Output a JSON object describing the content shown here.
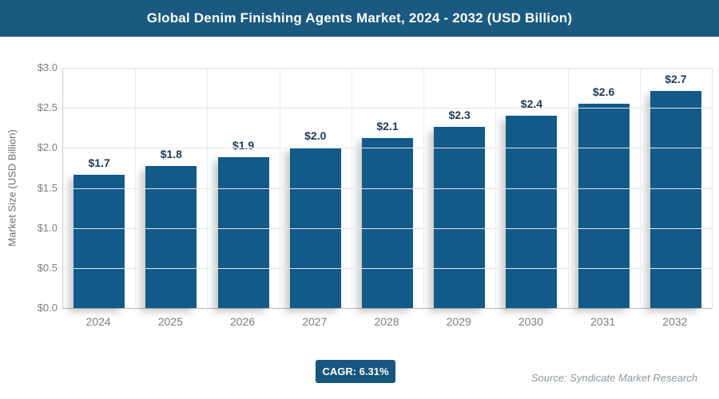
{
  "header": {
    "title": "Global Denim Finishing Agents Market, 2024 - 2032 (USD Billion)"
  },
  "chart_data": {
    "type": "bar",
    "title": "Global Denim Finishing Agents Market, 2024 - 2032 (USD Billion)",
    "categories": [
      "2024",
      "2025",
      "2026",
      "2027",
      "2028",
      "2029",
      "2030",
      "2031",
      "2032"
    ],
    "values": [
      1.66,
      1.77,
      1.88,
      2.0,
      2.12,
      2.26,
      2.4,
      2.55,
      2.71
    ],
    "bar_labels": [
      "$1.7",
      "$1.8",
      "$1.9",
      "$2.0",
      "$2.1",
      "$2.3",
      "$2.4",
      "$2.6",
      "$2.7"
    ],
    "xlabel": "",
    "ylabel": "Market Size (USD Billion)",
    "ylim": [
      0,
      3.0
    ],
    "ytick_values": [
      0,
      0.5,
      1.0,
      1.5,
      2.0,
      2.5,
      3.0
    ],
    "ytick_labels": [
      "$0.0",
      "$0.5",
      "$1.0",
      "$1.5",
      "$2.0",
      "$2.5",
      "$3.0"
    ],
    "grid": true,
    "legend_position": "none"
  },
  "footer": {
    "cagr_label": "CAGR: 6.31%",
    "source": "Source: Syndicate Market Research"
  },
  "colors": {
    "header_bg": "#1B5A80",
    "bar": "#115A8A",
    "badge_bg": "#17567E",
    "value_label": "#1F3A54",
    "grid": "#E6E6E6",
    "axis_text": "#808080"
  }
}
